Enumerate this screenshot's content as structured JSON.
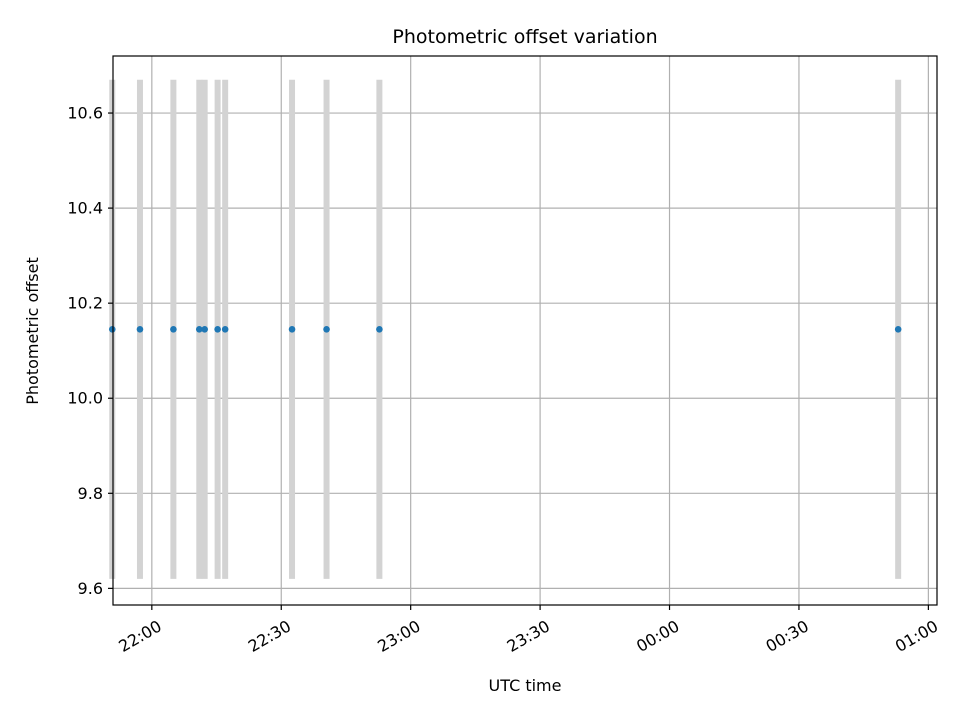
{
  "chart_data": {
    "type": "scatter",
    "title": "Photometric offset variation",
    "xlabel": "UTC time",
    "ylabel": "Photometric offset",
    "xlim": [
      "21:51",
      "01:02"
    ],
    "ylim": [
      9.565,
      10.72
    ],
    "grid": true,
    "x_ticks": [
      "22:00",
      "22:30",
      "23:00",
      "23:30",
      "00:00",
      "00:30",
      "01:00"
    ],
    "y_ticks": [
      9.6,
      9.8,
      10.0,
      10.2,
      10.4,
      10.6
    ],
    "bands": {
      "color": "#d3d3d3",
      "y_range": [
        9.62,
        10.67
      ]
    },
    "points": {
      "color": "#1f77b4",
      "x": [
        "21:50:50",
        "21:57:15",
        "22:05:00",
        "22:11:00",
        "22:12:15",
        "22:15:15",
        "22:17:00",
        "22:32:30",
        "22:40:30",
        "22:52:45",
        "00:53:00"
      ],
      "y": [
        10.145,
        10.145,
        10.145,
        10.145,
        10.145,
        10.145,
        10.145,
        10.145,
        10.145,
        10.145,
        10.145
      ]
    }
  }
}
